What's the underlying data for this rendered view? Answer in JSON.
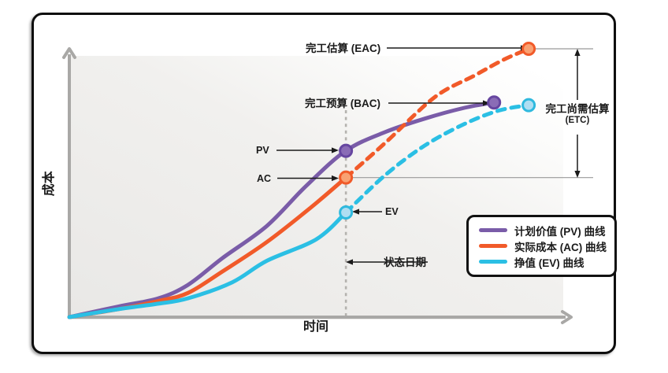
{
  "labels": {
    "eac": "完工估算 (EAC)",
    "bac": "完工预算 (BAC)",
    "etc_line1": "完工尚需估算",
    "etc_line2": "(ETC)",
    "pv": "PV",
    "ac": "AC",
    "ev": "EV",
    "status_date": "状态日期",
    "x_axis": "时间",
    "y_axis": "成本"
  },
  "legend": {
    "items": [
      {
        "label": "计划价值 (PV) 曲线",
        "color": "#7A5CA8"
      },
      {
        "label": "实际成本 (AC) 曲线",
        "color": "#F15A29"
      },
      {
        "label": "挣值 (EV) 曲线",
        "color": "#2BBFE4"
      }
    ]
  },
  "colors": {
    "pv_line": "#7A5CA8",
    "pv_dot_fill": "#8A6CB6",
    "pv_dot_stroke": "#6646A0",
    "ac_line": "#F15A29",
    "ac_dot_fill": "#F9A172",
    "ac_dot_stroke": "#F15A29",
    "ev_line": "#2BBFE4",
    "ev_dot_fill": "#AFDEF2",
    "ev_dot_stroke": "#2FB9DE",
    "axis": "#a9a8a6",
    "ref_line": "#999999",
    "status_line": "#b5b3af",
    "annotation": "#1a1a1a",
    "frame": "#0e0e0e"
  },
  "chart_data": {
    "type": "line",
    "title": "",
    "xlabel": "时间",
    "ylabel": "成本",
    "axes_note": "conceptual EVM S-curve diagram, no numeric ticks; values normalized: time 0-100, cost 0-100 with EAC = 100",
    "grid": false,
    "legend_position": "lower right",
    "status_date_x": 56,
    "levels": {
      "bac": 80,
      "eac": 100,
      "pv_at_status": 62,
      "ac_at_status": 52,
      "ev_at_status": 39,
      "etc_span": 48
    },
    "series": [
      {
        "name": "计划价值 (PV) 曲线",
        "color": "#7A5CA8",
        "style": "solid",
        "x": [
          0,
          10,
          18,
          24,
          31,
          40,
          48,
          56,
          64,
          72,
          80,
          86
        ],
        "y": [
          0,
          4,
          7,
          12,
          22,
          34,
          49,
          62,
          69,
          74,
          78,
          80
        ]
      },
      {
        "name": "实际成本 (AC) 曲线 — 实际",
        "color": "#F15A29",
        "style": "solid",
        "x": [
          0,
          10,
          18,
          24,
          31,
          40,
          49,
          56
        ],
        "y": [
          0,
          3,
          6,
          9,
          17,
          28,
          41,
          52
        ]
      },
      {
        "name": "实际成本 (AC) 曲线 — 预测",
        "color": "#F15A29",
        "style": "dashed",
        "x": [
          56,
          64,
          74,
          82,
          88,
          93
        ],
        "y": [
          52,
          65,
          82,
          90,
          96,
          100
        ]
      },
      {
        "name": "挣值 (EV) 曲线 — 实际",
        "color": "#2BBFE4",
        "style": "solid",
        "x": [
          0,
          10,
          18,
          24,
          33,
          40,
          50,
          56
        ],
        "y": [
          0,
          3,
          5,
          7,
          13,
          21,
          29,
          39
        ]
      },
      {
        "name": "挣值 (EV) 曲线 — 预测",
        "color": "#2BBFE4",
        "style": "dashed",
        "x": [
          56,
          64,
          72,
          80,
          87,
          93
        ],
        "y": [
          39,
          53,
          64,
          72,
          77,
          79
        ]
      }
    ],
    "markers": [
      {
        "name": "pv-at-status",
        "x": 56,
        "y": 62,
        "fill": "#8A6CB6",
        "stroke": "#6646A0"
      },
      {
        "name": "bac",
        "x": 86,
        "y": 80,
        "fill": "#8A6CB6",
        "stroke": "#6646A0"
      },
      {
        "name": "ac-at-status",
        "x": 56,
        "y": 52,
        "fill": "#F9A172",
        "stroke": "#F15A29"
      },
      {
        "name": "eac",
        "x": 93,
        "y": 100,
        "fill": "#F9A172",
        "stroke": "#F15A29"
      },
      {
        "name": "ev-at-status",
        "x": 56,
        "y": 39,
        "fill": "#AFDEF2",
        "stroke": "#2FB9DE"
      },
      {
        "name": "ev-forecast-end",
        "x": 93,
        "y": 79,
        "fill": "#AFDEF2",
        "stroke": "#2FB9DE"
      }
    ]
  }
}
